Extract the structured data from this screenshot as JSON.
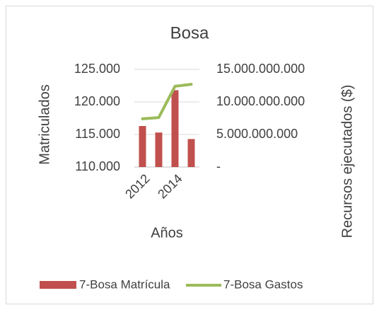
{
  "chart_data": {
    "type": "bar_line",
    "title": "Bosa",
    "x_label": "Años",
    "y_label": "Matriculados",
    "y2_label": "Recursos ejecutados ($)",
    "categories": [
      "2012",
      null,
      "2014",
      null
    ],
    "series": [
      {
        "name": "7-Bosa Matrícula",
        "type": "bar",
        "color": "#c0504d",
        "values": [
          116300,
          115300,
          121800,
          114300
        ]
      },
      {
        "name": "7-Bosa Gastos",
        "type": "line",
        "axis": "y2",
        "color": "#9bbb59",
        "values": [
          7400000000,
          7600000000,
          12400000000,
          12700000000
        ]
      }
    ],
    "ylim": [
      110000,
      125000
    ],
    "yticks": [
      {
        "value": 110000,
        "label": "110.000"
      },
      {
        "value": 115000,
        "label": "115.000"
      },
      {
        "value": 120000,
        "label": "120.000"
      },
      {
        "value": 125000,
        "label": "125.000"
      }
    ],
    "y2lim": [
      0,
      15000000000
    ],
    "y2ticks": [
      {
        "value": 0,
        "label": "-"
      },
      {
        "value": 5000000000,
        "label": "5.000.000.000"
      },
      {
        "value": 10000000000,
        "label": "10.000.000.000"
      },
      {
        "value": 15000000000,
        "label": "15.000.000.000"
      }
    ],
    "grid": true,
    "legend": "bottom"
  }
}
